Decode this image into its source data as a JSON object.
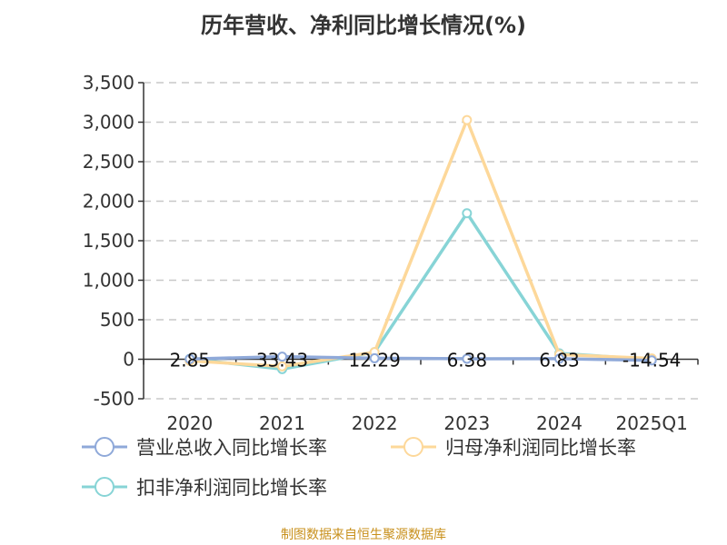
{
  "chart_data": {
    "type": "line",
    "title": "历年营收、净利同比增长情况(%)",
    "categories": [
      "2020",
      "2021",
      "2022",
      "2023",
      "2024",
      "2025Q1"
    ],
    "ylim": [
      -500,
      3500
    ],
    "yticks": [
      -500,
      0,
      500,
      1000,
      1500,
      2000,
      2500,
      3000,
      3500
    ],
    "ytick_labels": [
      "-500",
      "0",
      "500",
      "1,000",
      "1,500",
      "2,000",
      "2,500",
      "3,000",
      "3,500"
    ],
    "grid": true,
    "legend_position": "bottom",
    "series": [
      {
        "name": "营业总收入同比增长率",
        "color": "#8fa9d9",
        "values": [
          2.85,
          33.43,
          12.29,
          6.38,
          6.83,
          -14.54
        ],
        "data_labels": [
          "2.85",
          "33.43",
          "12.29",
          "6.38",
          "6.83",
          "-14.54"
        ]
      },
      {
        "name": "归母净利润同比增长率",
        "color": "#fdd89a",
        "values": [
          -20,
          -90,
          90,
          3027,
          60,
          10
        ]
      },
      {
        "name": "扣非净利润同比增长率",
        "color": "#87d4d6",
        "values": [
          5,
          -125,
          90,
          1848,
          75,
          -5
        ]
      }
    ]
  },
  "source": "制图数据来自恒生聚源数据库"
}
